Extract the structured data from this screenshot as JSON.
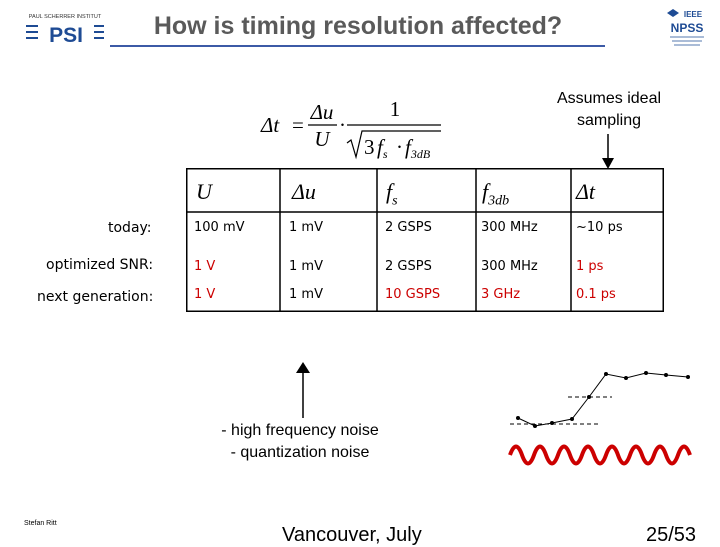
{
  "header": {
    "title": "How is timing resolution affected?",
    "logo_left_top": "PAUL SCHERRER INSTITUT",
    "logo_left_main": "PSI",
    "logo_right_top": "IEEE",
    "logo_right_main": "NPSS"
  },
  "formula": {
    "lhs": "Δt",
    "equals": "=",
    "num1": "Δu",
    "den1": "U",
    "dot": "·",
    "num2": "1",
    "root_coef": "3",
    "fs": "f",
    "fs_sub": "s",
    "f3": "f",
    "f3_sub": "3dB"
  },
  "assumption": {
    "line1": "Assumes ideal",
    "line2": "sampling"
  },
  "table": {
    "headers": [
      {
        "main": "U",
        "sub": ""
      },
      {
        "main": "Δu",
        "sub": ""
      },
      {
        "main": "f",
        "sub": "s"
      },
      {
        "main": "f",
        "sub": "3db"
      },
      {
        "main": "Δt",
        "sub": ""
      }
    ],
    "rows": [
      {
        "label": "today:",
        "cells": [
          "100 mV",
          "1 mV",
          "2 GSPS",
          "300 MHz",
          "~10 ps"
        ]
      },
      {
        "label": "optimized SNR:",
        "cells": [
          "1 V",
          "1 mV",
          "2 GSPS",
          "300 MHz",
          "1 ps"
        ]
      },
      {
        "label": "next generation:",
        "cells": [
          "1 V",
          "1 mV",
          "10 GSPS",
          "3 GHz",
          "0.1 ps"
        ]
      }
    ]
  },
  "noise": {
    "line1": "- high frequency noise",
    "line2": "- quantization noise"
  },
  "colors": {
    "accent": "#cc0000",
    "title_gray": "#5a5a5a",
    "title_rule": "#3c5aa6",
    "logo_blue": "#1e4b94"
  },
  "footer": {
    "author": "Stefan Ritt",
    "venue": "Vancouver, July",
    "page": "25/53"
  }
}
